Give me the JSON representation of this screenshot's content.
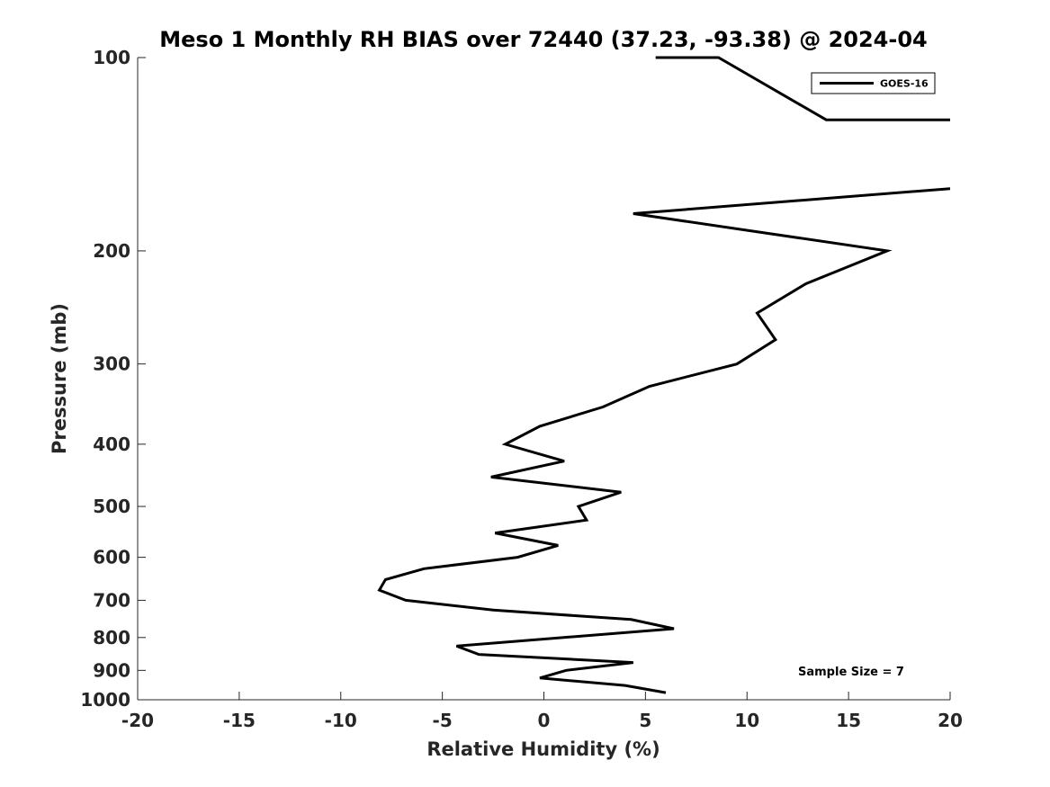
{
  "chart_data": {
    "type": "line",
    "title": "Meso 1 Monthly RH BIAS over 72440 (37.23, -93.38) @ 2024-04",
    "xlabel": "Relative Humidity (%)",
    "ylabel": "Pressure (mb)",
    "xlim": [
      -20,
      20
    ],
    "ylim": [
      100,
      1000
    ],
    "yscale": "log",
    "y_reversed": true,
    "grid": false,
    "legend_position": "top-right",
    "x_ticks": [
      -20,
      -15,
      -10,
      -5,
      0,
      5,
      10,
      15,
      20
    ],
    "y_ticks": [
      100,
      200,
      300,
      400,
      500,
      600,
      700,
      800,
      900,
      1000
    ],
    "series": [
      {
        "name": "GOES-16",
        "color": "#000000",
        "segments": [
          [
            {
              "x": 6.0,
              "y": 975
            },
            {
              "x": 4.0,
              "y": 950
            },
            {
              "x": -0.2,
              "y": 925
            },
            {
              "x": 1.1,
              "y": 900
            },
            {
              "x": 4.4,
              "y": 875
            },
            {
              "x": -3.2,
              "y": 850
            },
            {
              "x": -4.3,
              "y": 825
            },
            {
              "x": 6.4,
              "y": 775
            },
            {
              "x": 4.3,
              "y": 750
            },
            {
              "x": -2.5,
              "y": 725
            },
            {
              "x": -6.8,
              "y": 700
            },
            {
              "x": -8.1,
              "y": 675
            },
            {
              "x": -7.8,
              "y": 650
            },
            {
              "x": -5.9,
              "y": 625
            },
            {
              "x": -1.3,
              "y": 600
            },
            {
              "x": 0.7,
              "y": 575
            },
            {
              "x": -2.4,
              "y": 550
            },
            {
              "x": 2.1,
              "y": 525
            },
            {
              "x": 1.7,
              "y": 500
            },
            {
              "x": 3.8,
              "y": 475
            },
            {
              "x": -2.6,
              "y": 450
            },
            {
              "x": 1.0,
              "y": 425
            },
            {
              "x": -1.9,
              "y": 400
            },
            {
              "x": -0.2,
              "y": 375
            },
            {
              "x": 2.9,
              "y": 350
            },
            {
              "x": 5.2,
              "y": 325
            },
            {
              "x": 9.5,
              "y": 300
            },
            {
              "x": 11.4,
              "y": 275
            },
            {
              "x": 10.5,
              "y": 250
            },
            {
              "x": 12.9,
              "y": 225
            },
            {
              "x": 16.9,
              "y": 200
            },
            {
              "x": 4.4,
              "y": 175
            },
            {
              "x": 20.0,
              "y": 160
            }
          ],
          [
            {
              "x": 20.0,
              "y": 125
            },
            {
              "x": 13.9,
              "y": 125
            },
            {
              "x": 8.6,
              "y": 100
            },
            {
              "x": 6.7,
              "y": 100
            },
            {
              "x": 5.5,
              "y": 100
            }
          ]
        ]
      }
    ],
    "annotations": [
      "Sample Size = 7"
    ]
  }
}
